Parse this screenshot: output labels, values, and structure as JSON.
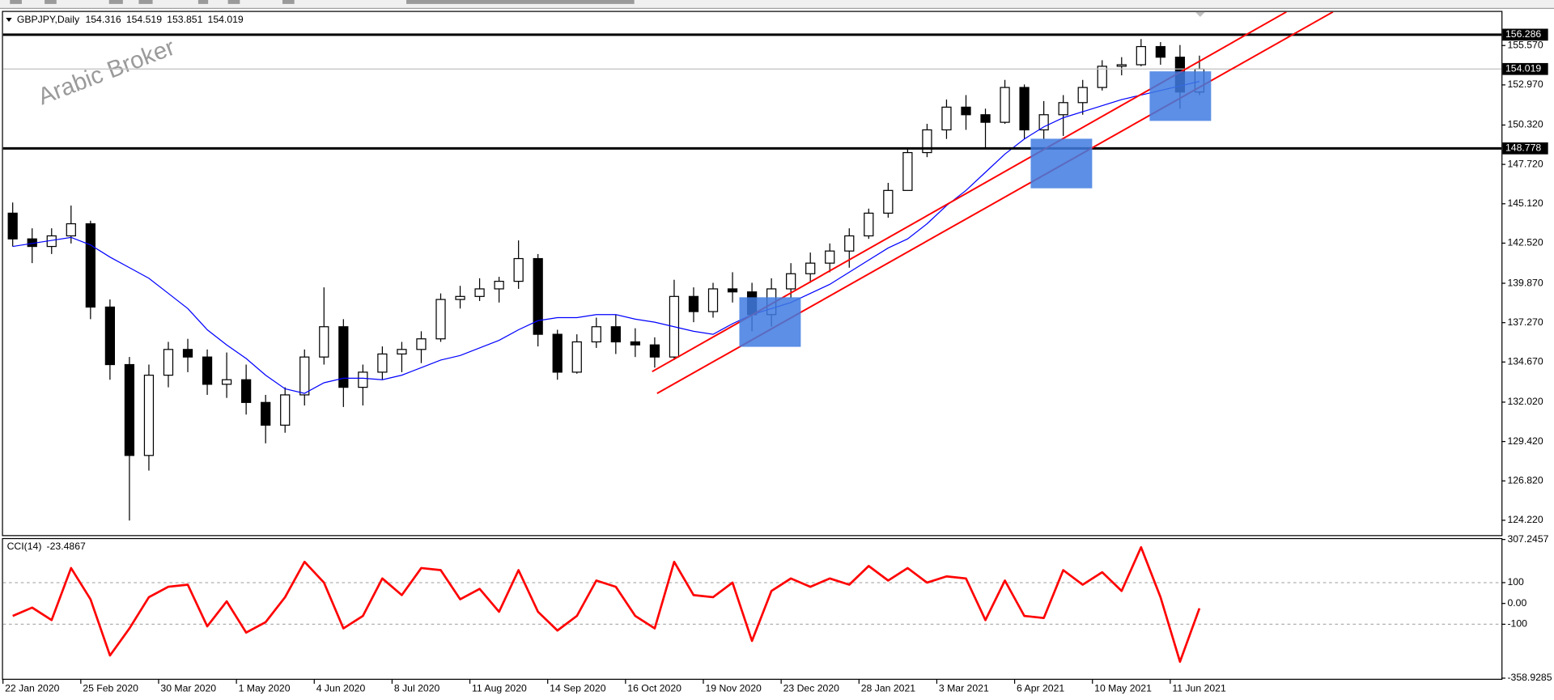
{
  "chart_data": {
    "type": "candlestick",
    "title": "GBPJPY,Daily",
    "quote": [
      154.316,
      154.519,
      153.851,
      154.019
    ],
    "watermark": "Arabic Broker",
    "categories": [
      "22 Jan 2020",
      null,
      null,
      null,
      "25 Feb 2020",
      null,
      null,
      null,
      "30 Mar 2020",
      null,
      null,
      null,
      "1 May 2020",
      null,
      null,
      null,
      "4 Jun 2020",
      null,
      null,
      null,
      "8 Jul 2020",
      null,
      null,
      null,
      "11 Aug 2020",
      null,
      null,
      null,
      "14 Sep 2020",
      null,
      null,
      null,
      "16 Oct 2020",
      null,
      null,
      null,
      "19 Nov 2020",
      null,
      null,
      null,
      "23 Dec 2020",
      null,
      null,
      null,
      "28 Jan 2021",
      null,
      null,
      null,
      "3 Mar 2021",
      null,
      null,
      null,
      "6 Apr 2021",
      null,
      null,
      null,
      "10 May 2021",
      null,
      null,
      null,
      "11 Jun 2021",
      null
    ],
    "open": [
      144.5,
      142.8,
      142.3,
      143.0,
      143.8,
      138.3,
      134.5,
      128.5,
      133.8,
      135.5,
      135.0,
      133.2,
      133.5,
      132.0,
      130.5,
      132.5,
      135.0,
      137.0,
      133.0,
      134.0,
      135.2,
      135.5,
      136.2,
      138.8,
      139.0,
      139.5,
      140.0,
      141.5,
      136.5,
      134.0,
      136.0,
      137.0,
      136.0,
      135.8,
      135.0,
      139.0,
      138.0,
      139.5,
      139.3,
      137.8,
      139.5,
      140.5,
      141.2,
      142.0,
      143.0,
      144.5,
      146.0,
      148.5,
      150.0,
      151.5,
      151.0,
      150.5,
      152.8,
      150.0,
      151.0,
      151.8,
      152.8,
      154.2,
      154.3,
      155.5,
      154.8,
      152.5
    ],
    "high": [
      145.2,
      143.5,
      143.5,
      145.0,
      144.0,
      138.8,
      135.0,
      134.5,
      136.0,
      136.2,
      135.5,
      135.3,
      134.5,
      132.5,
      133.0,
      135.5,
      139.6,
      137.5,
      134.5,
      135.7,
      136.0,
      136.7,
      139.2,
      139.7,
      140.2,
      140.3,
      142.7,
      141.8,
      136.8,
      136.5,
      137.6,
      137.8,
      136.9,
      136.3,
      140.1,
      139.6,
      139.9,
      140.6,
      139.9,
      140.2,
      141.2,
      141.9,
      142.5,
      143.5,
      144.8,
      146.5,
      148.8,
      150.4,
      152.0,
      152.3,
      151.4,
      153.3,
      153.0,
      151.9,
      152.3,
      153.3,
      154.6,
      154.8,
      156.0,
      155.8,
      155.6,
      154.9
    ],
    "low": [
      142.3,
      141.2,
      141.8,
      142.5,
      137.5,
      133.5,
      124.2,
      127.5,
      133.0,
      134.0,
      132.5,
      132.3,
      131.2,
      129.3,
      130.0,
      131.8,
      134.5,
      131.7,
      131.8,
      133.5,
      134.0,
      134.6,
      136.0,
      138.2,
      138.7,
      138.6,
      139.5,
      135.7,
      133.5,
      133.9,
      135.6,
      135.2,
      135.0,
      134.3,
      134.8,
      137.3,
      137.6,
      138.6,
      136.7,
      137.0,
      138.9,
      139.9,
      140.6,
      140.9,
      142.8,
      144.2,
      146.0,
      148.2,
      149.4,
      150.0,
      148.8,
      150.4,
      149.4,
      149.4,
      149.6,
      151.0,
      152.6,
      153.6,
      154.2,
      154.3,
      151.4,
      152.3
    ],
    "close": [
      142.8,
      142.3,
      143.0,
      143.8,
      138.3,
      134.5,
      128.5,
      133.8,
      135.5,
      135.0,
      133.2,
      133.5,
      132.0,
      130.5,
      132.5,
      135.0,
      137.0,
      133.0,
      134.0,
      135.2,
      135.5,
      136.2,
      138.8,
      139.0,
      139.5,
      140.0,
      141.5,
      136.5,
      134.0,
      136.0,
      137.0,
      136.0,
      135.8,
      135.0,
      139.0,
      138.0,
      139.5,
      139.3,
      137.8,
      139.5,
      140.5,
      141.2,
      142.0,
      143.0,
      144.5,
      146.0,
      148.5,
      150.0,
      151.5,
      151.0,
      150.5,
      152.8,
      150.0,
      151.0,
      151.8,
      152.8,
      154.2,
      154.3,
      155.5,
      154.8,
      152.5,
      154.019
    ],
    "bull_color": "#ffffff",
    "bear_color": "#000000",
    "moving_average": {
      "color": "#0000ff",
      "values": [
        142.3,
        142.5,
        142.7,
        142.9,
        142.4,
        141.6,
        140.9,
        140.2,
        139.2,
        138.2,
        136.8,
        135.8,
        134.9,
        133.8,
        132.9,
        132.6,
        133.3,
        133.6,
        133.6,
        133.5,
        133.8,
        134.3,
        134.8,
        135.1,
        135.6,
        136.1,
        136.8,
        137.4,
        137.6,
        137.6,
        137.8,
        137.8,
        137.5,
        137.3,
        137.0,
        136.7,
        136.5,
        137.2,
        137.8,
        138.2,
        138.6,
        139.2,
        139.8,
        140.6,
        141.4,
        142.2,
        142.8,
        143.8,
        145.0,
        146.0,
        147.2,
        148.4,
        149.4,
        150.2,
        150.8,
        151.2,
        151.6,
        152.0,
        152.3,
        152.6,
        152.9,
        153.2
      ]
    },
    "levels": [
      156.286,
      148.778
    ],
    "ylim": [
      123.24,
      157.79
    ],
    "yticks": [
      {
        "value": 155.57,
        "label": "155.570"
      },
      {
        "value": 152.97,
        "label": "152.970"
      },
      {
        "value": 150.32,
        "label": "150.320"
      },
      {
        "value": 147.72,
        "label": "147.720"
      },
      {
        "value": 145.12,
        "label": "145.120"
      },
      {
        "value": 142.52,
        "label": "142.520"
      },
      {
        "value": 139.87,
        "label": "139.870"
      },
      {
        "value": 137.27,
        "label": "137.270"
      },
      {
        "value": 134.67,
        "label": "134.670"
      },
      {
        "value": 132.02,
        "label": "132.020"
      },
      {
        "value": 129.42,
        "label": "129.420"
      },
      {
        "value": 126.82,
        "label": "126.820"
      },
      {
        "value": 124.22,
        "label": "124.220"
      }
    ],
    "indicator": {
      "type": "line",
      "title": "CCI(14)",
      "color": "#ff0000",
      "values": [
        -60,
        -20,
        -80,
        170,
        20,
        -250,
        -120,
        30,
        80,
        90,
        -110,
        10,
        -140,
        -90,
        30,
        200,
        100,
        -120,
        -60,
        120,
        40,
        170,
        160,
        20,
        70,
        -40,
        160,
        -40,
        -130,
        -60,
        110,
        80,
        -60,
        -120,
        200,
        40,
        30,
        100,
        -180,
        60,
        120,
        80,
        120,
        90,
        180,
        110,
        170,
        100,
        130,
        120,
        -80,
        110,
        -60,
        -70,
        160,
        90,
        150,
        60,
        270,
        30,
        -280,
        -23.4867
      ],
      "ylim": [
        -362,
        314
      ],
      "yticks": [
        307.2457,
        100,
        {
          "value": 0,
          "label": "0.00"
        },
        -100,
        -358.9285
      ]
    }
  }
}
